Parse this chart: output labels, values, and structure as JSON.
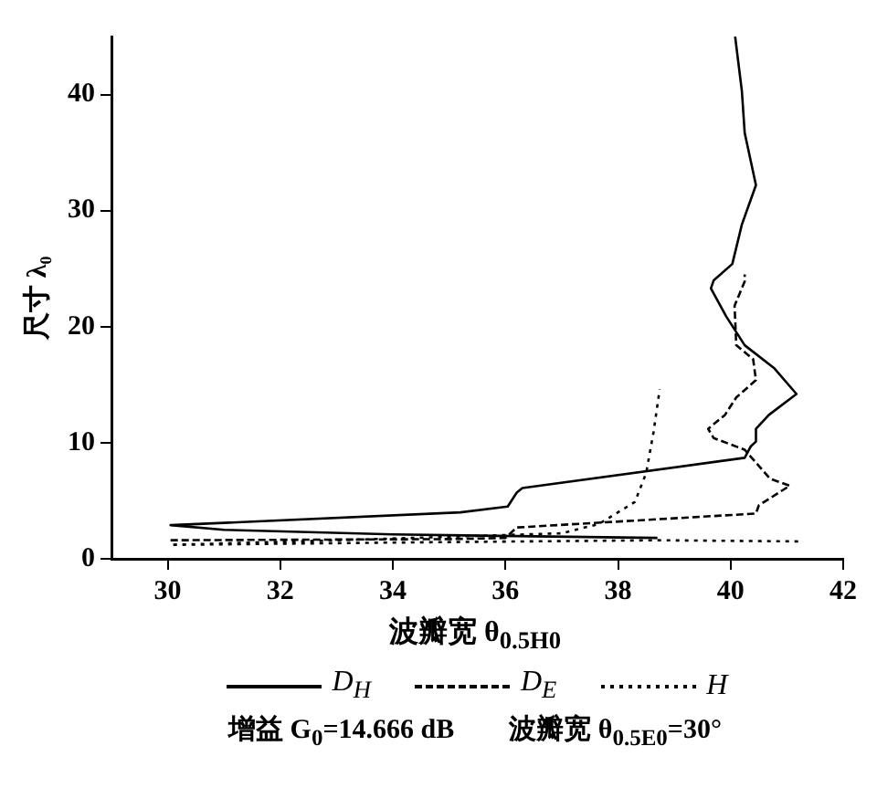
{
  "chart_data": {
    "type": "line",
    "xlabel": "波瓣宽 θ$_{0.5H0}$",
    "ylabel": "尺寸 λ₀",
    "xlim": [
      29,
      42
    ],
    "xticks": [
      30,
      32,
      34,
      36,
      38,
      40,
      42
    ],
    "ylim": [
      0,
      45
    ],
    "yticks": [
      0,
      10,
      20,
      30,
      40
    ],
    "grid": false,
    "legend": "bottom",
    "marker": "none",
    "series": [
      {
        "name": "D$_{H}$",
        "color": "#000000",
        "line_style": "solid",
        "x": [
          38.7,
          34.0,
          31.0,
          30.05,
          31.0,
          35.2,
          36.04,
          36.2,
          36.3,
          40.25,
          40.36,
          40.45,
          40.45,
          40.68,
          41.17,
          40.78,
          40.25,
          39.92,
          39.65,
          39.7,
          40.03,
          40.2,
          40.45,
          40.25,
          40.2,
          40.08
        ],
        "values": [
          1.8,
          2.1,
          2.5,
          2.9,
          3.1,
          4.0,
          4.5,
          5.7,
          6.1,
          8.7,
          9.7,
          10.1,
          11.2,
          12.4,
          14.2,
          16.4,
          18.4,
          20.9,
          23.3,
          24.0,
          25.4,
          28.8,
          32.2,
          36.7,
          40.3,
          45
        ]
      },
      {
        "name": "D$_{E}$",
        "color": "#000000",
        "line_style": "dashed",
        "x": [
          30.05,
          35.0,
          36.0,
          36.2,
          40.45,
          40.5,
          41.05,
          40.7,
          40.25,
          39.7,
          39.6,
          39.9,
          40.1,
          40.45,
          40.4,
          40.1,
          40.07,
          40.25,
          40.25
        ],
        "values": [
          1.6,
          1.7,
          1.8,
          2.7,
          3.9,
          4.6,
          6.3,
          6.9,
          9.4,
          10.4,
          11.2,
          12.4,
          13.9,
          15.4,
          17.2,
          18.4,
          21.8,
          23.9,
          24.5
        ]
      },
      {
        "name": "H",
        "color": "#000000",
        "line_style": "dotted",
        "x": [
          41.2,
          38.7,
          34.0,
          30.05,
          33.0,
          37.0,
          37.66,
          38.3,
          38.5,
          38.63,
          38.74
        ],
        "values": [
          1.5,
          1.6,
          1.4,
          1.2,
          1.6,
          2.2,
          3.0,
          4.9,
          7.4,
          10.9,
          14.6
        ]
      }
    ],
    "annotations": [
      "增益 G$_{0}$=14.666 dB　　波瓣宽 θ$_{0.5E0}$=30°"
    ]
  }
}
